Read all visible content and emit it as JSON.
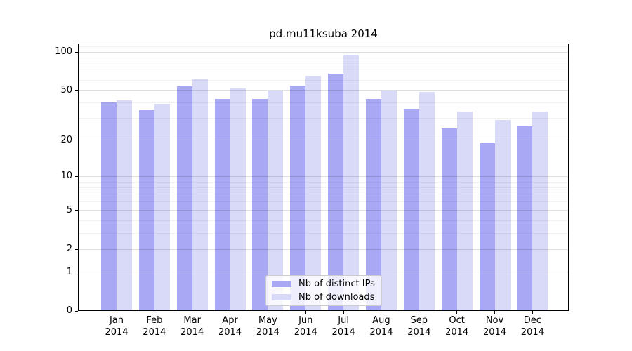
{
  "title": "pd.mu11ksuba 2014",
  "chart_data": {
    "type": "bar",
    "title": "pd.mu11ksuba 2014",
    "categories": [
      "Jan",
      "Feb",
      "Mar",
      "Apr",
      "May",
      "Jun",
      "Jul",
      "Aug",
      "Sep",
      "Oct",
      "Nov",
      "Dec"
    ],
    "category_year": "2014",
    "series": [
      {
        "name": "Nb of distinct IPs",
        "color": "#a8a8f5",
        "values": [
          40,
          35,
          54,
          43,
          43,
          55,
          68,
          43,
          36,
          25,
          19,
          26
        ]
      },
      {
        "name": "Nb of downloads",
        "color": "#d9d9f8",
        "values": [
          42,
          39,
          61,
          52,
          50,
          65,
          95,
          50,
          49,
          34,
          29,
          34
        ]
      }
    ],
    "yscale": "log10(y+1)",
    "yticks": [
      0,
      1,
      2,
      5,
      10,
      20,
      50,
      100
    ],
    "minor_yticks": [
      3,
      4,
      6,
      7,
      8,
      9,
      30,
      40,
      60,
      70,
      80,
      90,
      110
    ],
    "ylim": [
      0,
      117
    ],
    "xlabel": "",
    "ylabel": "",
    "grid": "horizontal",
    "legend_position": "lower-center-inside"
  },
  "colors": {
    "background": "#ffffff",
    "axis": "#000000",
    "grid_major": "rgba(0,0,0,0.13)",
    "grid_minor": "rgba(0,0,0,0.05)",
    "legend_border": "#cccccc"
  }
}
